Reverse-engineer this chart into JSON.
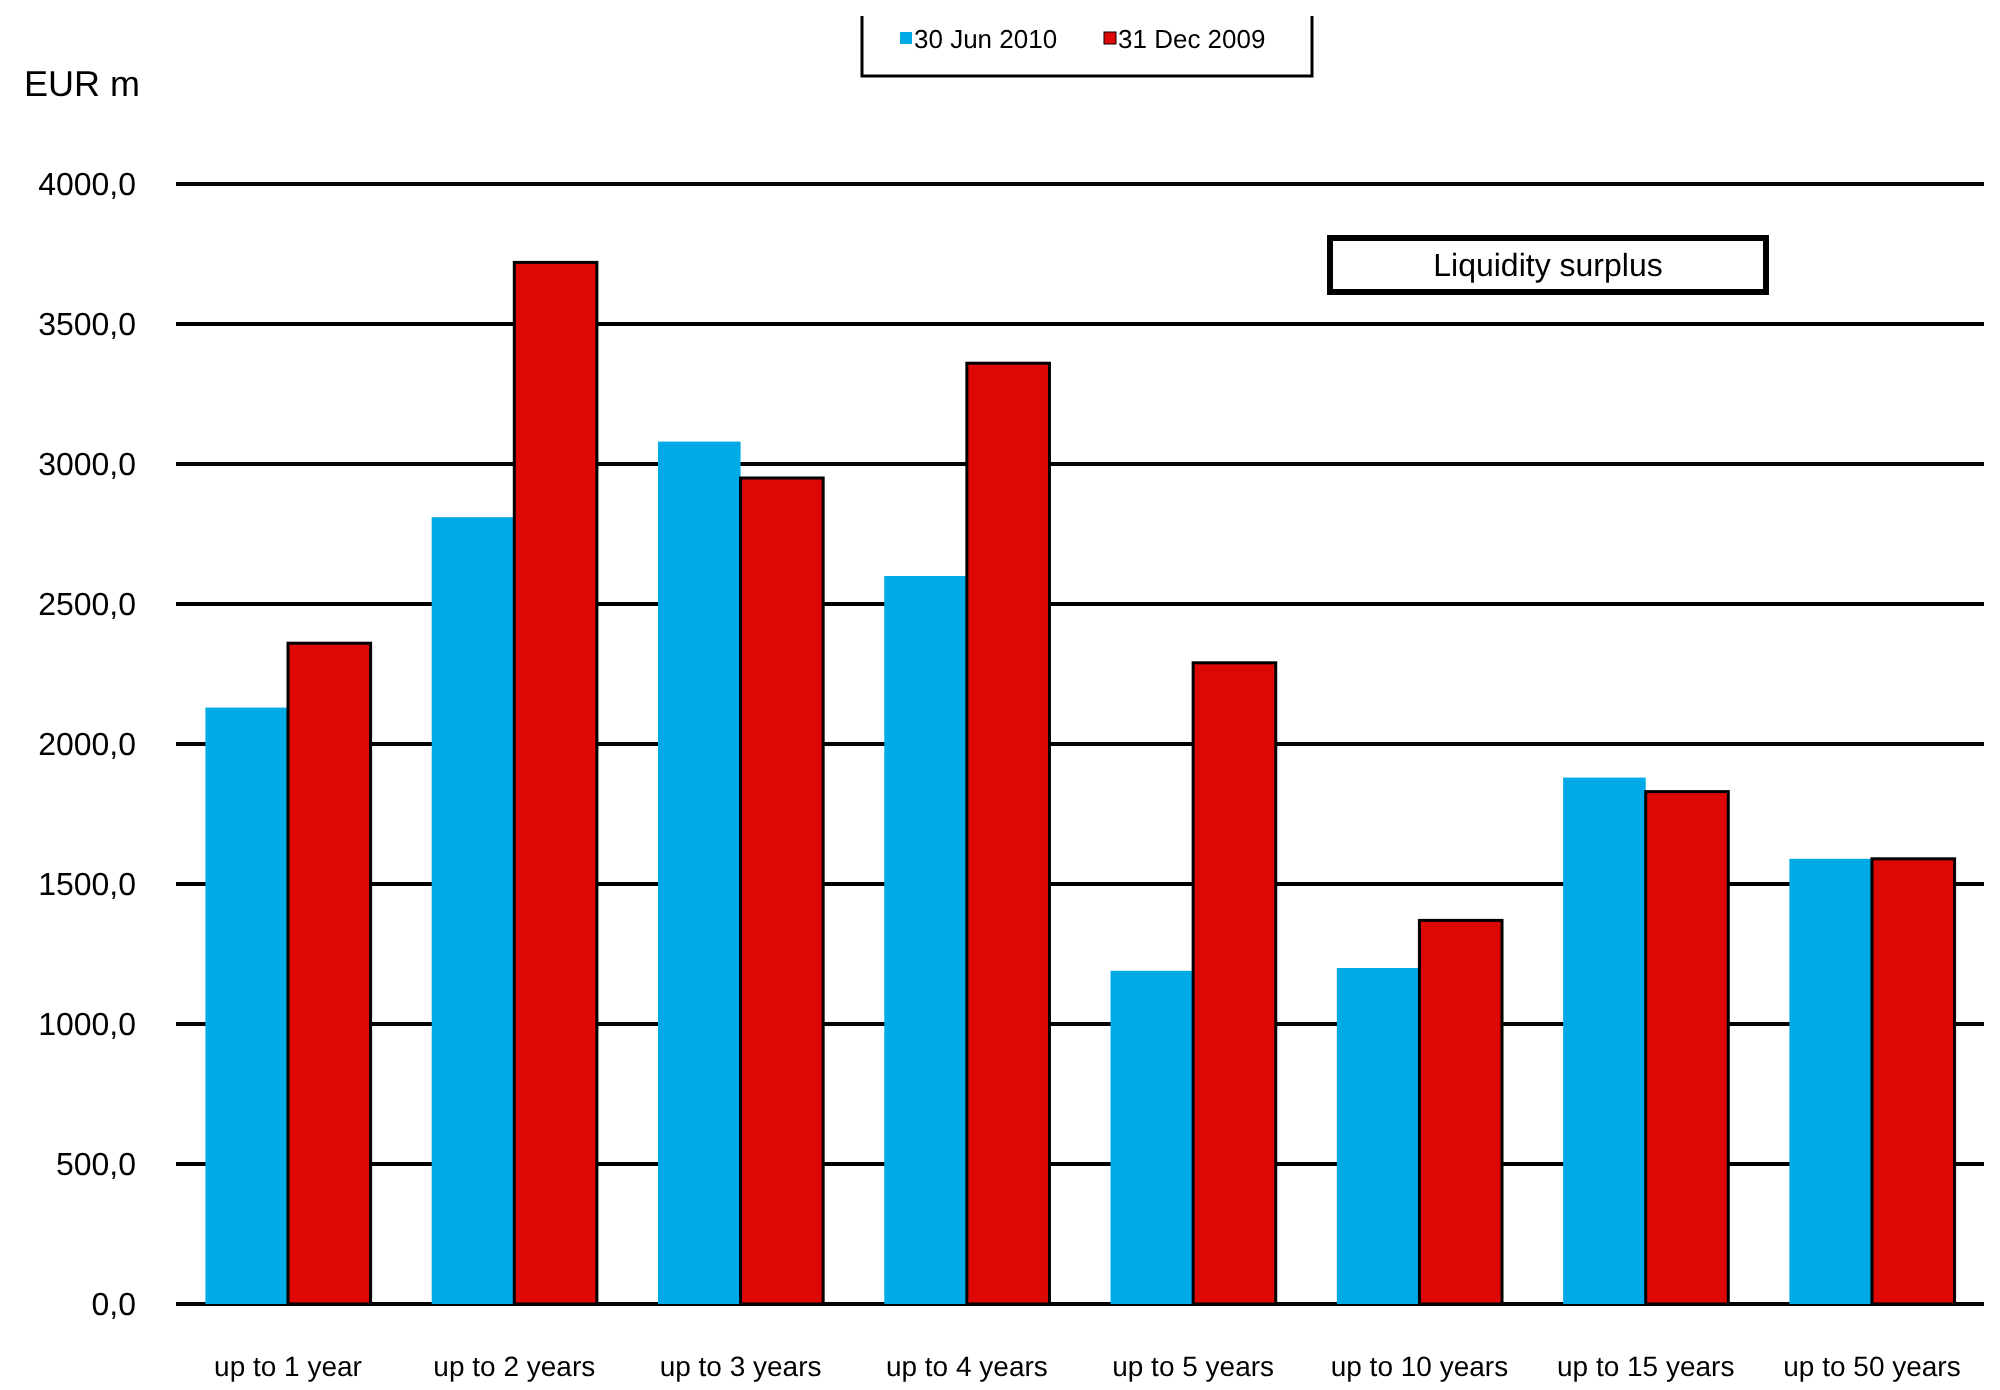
{
  "chart_data": {
    "type": "bar",
    "ylabel": "EUR m",
    "annotations": [
      "Liquidity surplus"
    ],
    "categories": [
      "up to 1 year",
      "up to 2 years",
      "up to 3 years",
      "up to 4 years",
      "up to 5 years",
      "up to 10 years",
      "up to 15 years",
      "up to 50 years"
    ],
    "series": [
      {
        "name": "30 Jun 2010",
        "color": "#00aae6",
        "values": [
          2130,
          2810,
          3080,
          2600,
          1190,
          1200,
          1880,
          1590
        ]
      },
      {
        "name": "31 Dec 2009",
        "color": "#dd0806",
        "values": [
          2360,
          3720,
          2950,
          3360,
          2290,
          1370,
          1830,
          1590
        ]
      }
    ],
    "ylim": [
      0,
      4000
    ],
    "yticks": [
      {
        "value": 0,
        "label": "0,0"
      },
      {
        "value": 500,
        "label": "500,0"
      },
      {
        "value": 1000,
        "label": "1000,0"
      },
      {
        "value": 1500,
        "label": "1500,0"
      },
      {
        "value": 2000,
        "label": "2000,0"
      },
      {
        "value": 2500,
        "label": "2500,0"
      },
      {
        "value": 3000,
        "label": "3000,0"
      },
      {
        "value": 3500,
        "label": "3500,0"
      },
      {
        "value": 4000,
        "label": "4000,0"
      }
    ],
    "grid": "y",
    "legend": "top"
  }
}
